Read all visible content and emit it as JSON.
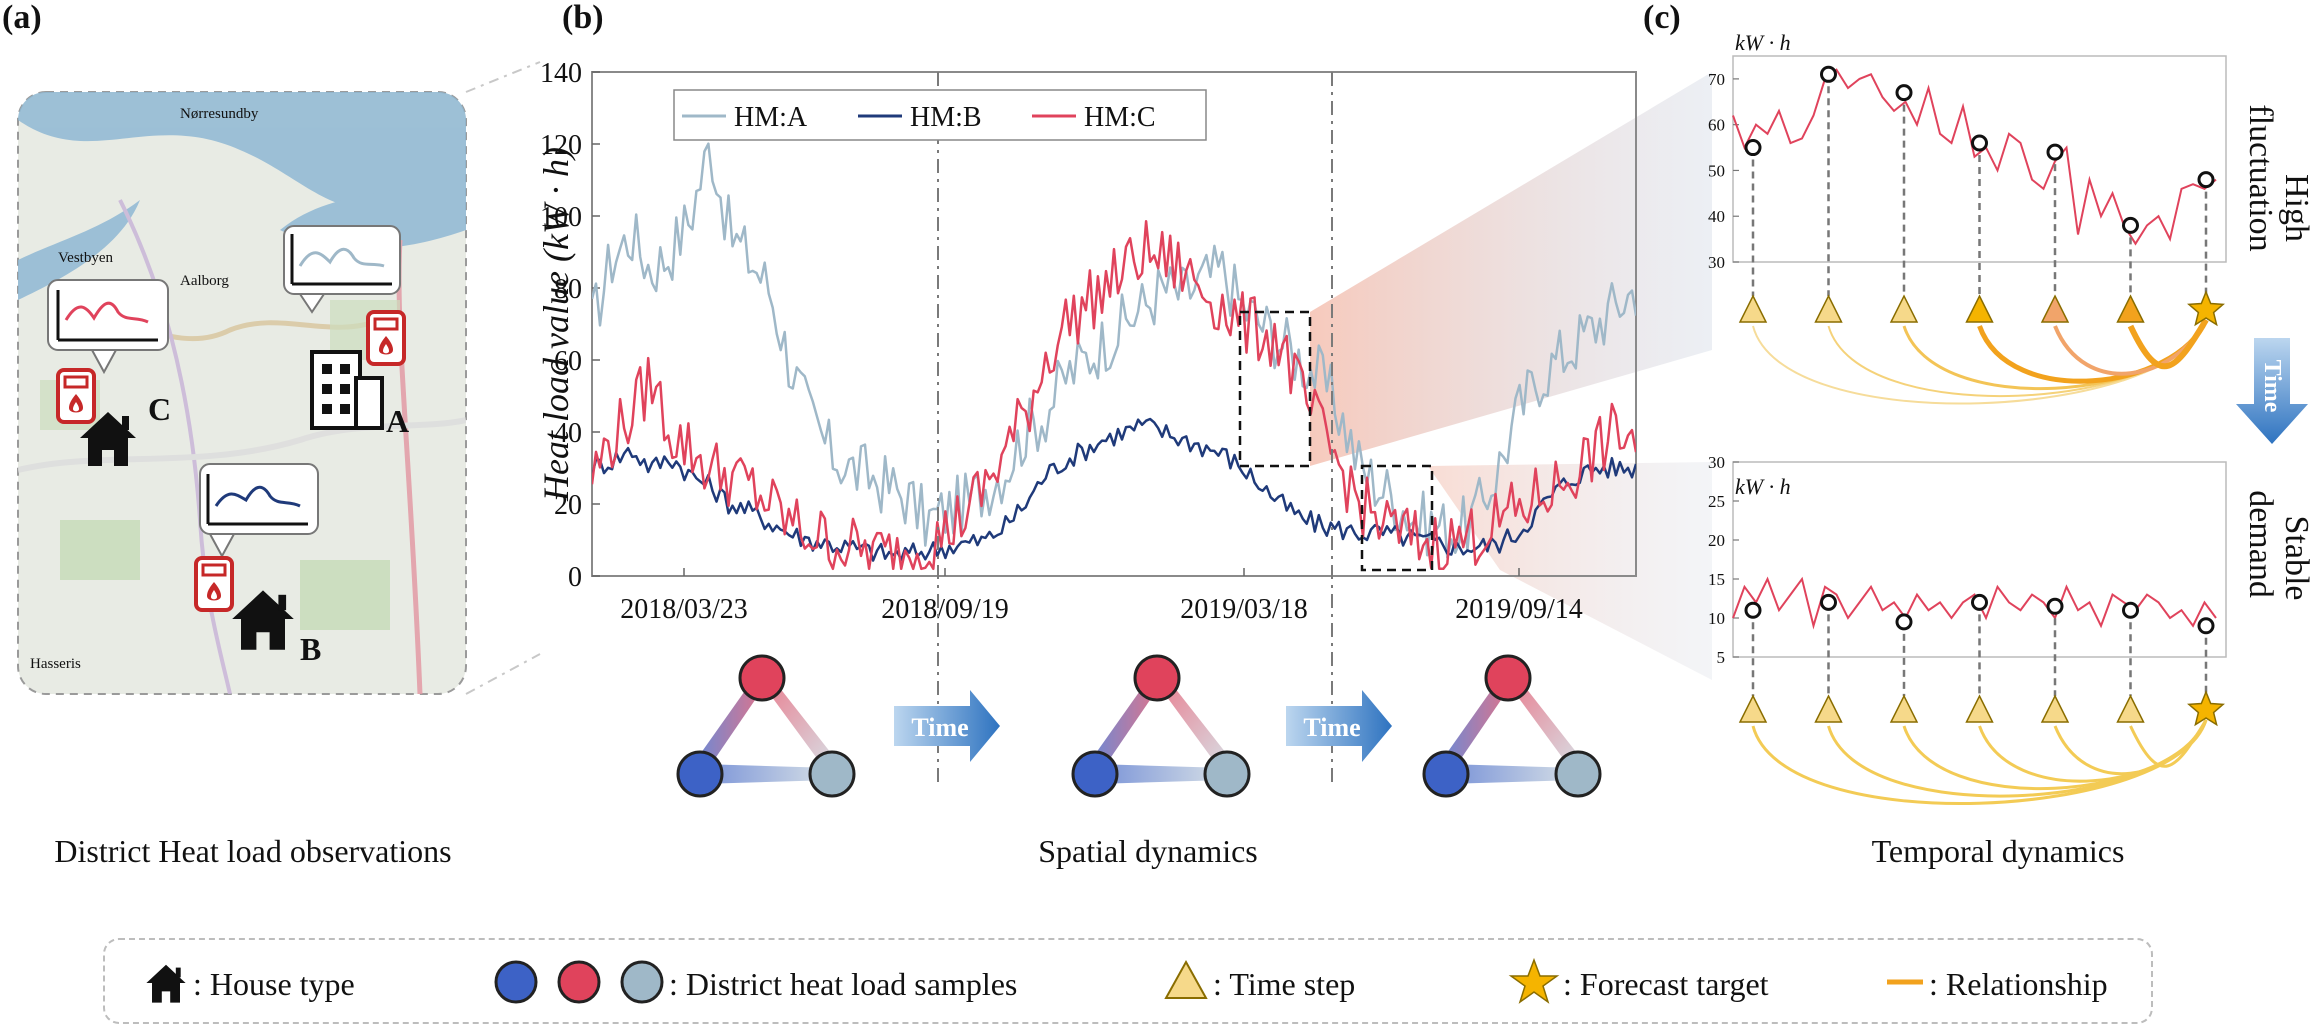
{
  "panels": {
    "a": {
      "label": "(a)",
      "caption": "District Heat load observations",
      "meters": [
        {
          "name": "A"
        },
        {
          "name": "B"
        },
        {
          "name": "C"
        }
      ],
      "map_labels": [
        "Nørresundby",
        "Vestbyen",
        "Aalborg",
        "Hasseris"
      ]
    },
    "b": {
      "label": "(b)",
      "caption": "Spatial dynamics",
      "time_label": "Time"
    },
    "c": {
      "label": "(c)",
      "caption": "Temporal dynamics",
      "time_label": "Time",
      "top_unit": "kW · h",
      "bottom_unit": "kW · h",
      "top_side_label": [
        "High",
        "fluctuation"
      ],
      "bottom_side_label": [
        "Stable",
        "demand"
      ]
    }
  },
  "chart_data": [
    {
      "type": "line",
      "title": "",
      "ylabel": "Heat load value (kW · h)",
      "xlabel": "",
      "ylim": [
        0,
        140
      ],
      "yticks": [
        0,
        20,
        40,
        60,
        80,
        100,
        120,
        140
      ],
      "xticks": [
        "2018/03/23",
        "2018/09/19",
        "2019/03/18",
        "2019/09/14"
      ],
      "legend_position": "top-left",
      "series": [
        {
          "name": "HM:A",
          "color": "#9fb8c8",
          "values": [
            70,
            88,
            95,
            85,
            90,
            100,
            120,
            95,
            88,
            80,
            60,
            45,
            35,
            30,
            28,
            25,
            22,
            15,
            18,
            20,
            25,
            30,
            40,
            45,
            55,
            60,
            65,
            70,
            75,
            80,
            78,
            82,
            85,
            75,
            70,
            65,
            60,
            55,
            45,
            30,
            25,
            20,
            15,
            14,
            12,
            18,
            30,
            45,
            55,
            60,
            65,
            70,
            75,
            80
          ]
        },
        {
          "name": "HM:B",
          "color": "#1f3a7a",
          "values": [
            30,
            32,
            35,
            30,
            33,
            28,
            25,
            20,
            18,
            15,
            12,
            10,
            9,
            8,
            7,
            6,
            6,
            7,
            8,
            9,
            10,
            14,
            20,
            28,
            32,
            35,
            38,
            40,
            42,
            40,
            38,
            36,
            34,
            30,
            25,
            20,
            16,
            14,
            13,
            12,
            12,
            11,
            10,
            9,
            8,
            8,
            9,
            12,
            18,
            24,
            28,
            30,
            30,
            30
          ]
        },
        {
          "name": "HM:C",
          "color": "#e0435c",
          "values": [
            28,
            38,
            45,
            55,
            40,
            35,
            30,
            28,
            25,
            20,
            15,
            12,
            10,
            8,
            7,
            6,
            7,
            9,
            12,
            18,
            25,
            35,
            45,
            60,
            70,
            75,
            80,
            85,
            90,
            88,
            85,
            80,
            75,
            70,
            68,
            65,
            50,
            40,
            30,
            20,
            15,
            12,
            10,
            9,
            10,
            12,
            15,
            18,
            22,
            25,
            30,
            35,
            40,
            38
          ]
        }
      ]
    },
    {
      "type": "line",
      "title": "",
      "ylabel": "kW · h",
      "ylim": [
        30,
        75
      ],
      "yticks": [
        30,
        40,
        50,
        60,
        70
      ],
      "series": [
        {
          "name": "",
          "color": "#e0435c",
          "values": [
            62,
            55,
            60,
            58,
            63,
            56,
            57,
            62,
            70,
            72,
            68,
            70,
            71,
            66,
            63,
            65,
            60,
            68,
            58,
            56,
            64,
            53,
            55,
            50,
            58,
            56,
            48,
            46,
            52,
            55,
            36,
            48,
            40,
            45,
            38,
            34,
            38,
            40,
            35,
            46,
            47,
            46,
            48
          ]
        }
      ],
      "markers": [
        {
          "label": "sample",
          "value": 55
        },
        {
          "label": "sample",
          "value": 71
        },
        {
          "label": "sample",
          "value": 67
        },
        {
          "label": "sample",
          "value": 56
        },
        {
          "label": "sample",
          "value": 54
        },
        {
          "label": "sample",
          "value": 38
        },
        {
          "label": "sample",
          "value": 48
        }
      ]
    },
    {
      "type": "line",
      "title": "",
      "ylabel": "kW · h",
      "ylim": [
        5,
        30
      ],
      "yticks": [
        5,
        10,
        15,
        20,
        25,
        30
      ],
      "series": [
        {
          "name": "",
          "color": "#e0435c",
          "values": [
            10,
            14,
            12,
            15,
            11,
            13,
            15,
            9,
            14,
            13,
            10,
            12,
            14,
            11,
            12,
            10,
            13,
            11,
            12,
            10,
            12,
            13,
            10,
            14,
            12,
            11,
            13,
            12,
            10,
            14,
            11,
            12,
            9,
            13,
            12,
            11,
            13,
            12,
            10,
            11,
            9,
            12,
            10
          ]
        }
      ],
      "markers": [
        {
          "label": "sample",
          "value": 11
        },
        {
          "label": "sample",
          "value": 12
        },
        {
          "label": "sample",
          "value": 9.5
        },
        {
          "label": "sample",
          "value": 12
        },
        {
          "label": "sample",
          "value": 11.5
        },
        {
          "label": "sample",
          "value": 11
        },
        {
          "label": "sample",
          "value": 9
        }
      ]
    }
  ],
  "legend": {
    "house": ": House type",
    "samples": ": District heat load samples",
    "time_step": ": Time step",
    "forecast": ": Forecast target",
    "relationship": ": Relationship"
  },
  "colors": {
    "A": "#9fb8c8",
    "B": "#1f3a7a",
    "C": "#e0435c",
    "triangle": "#f6d98a",
    "star": "#f5b400",
    "arrow": "#3a7bc8"
  }
}
